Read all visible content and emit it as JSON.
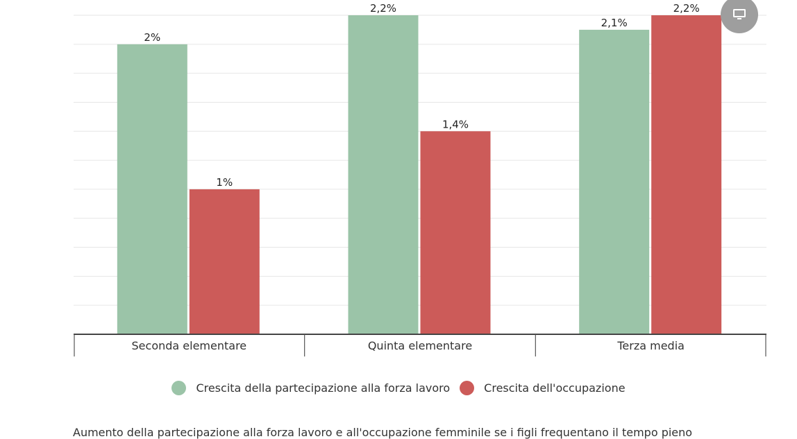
{
  "chart_data": {
    "type": "bar",
    "categories": [
      "Seconda elementare",
      "Quinta elementare",
      "Terza media"
    ],
    "series": [
      {
        "name": "Crescita della partecipazione alla forza lavoro",
        "color": "#9bc4a8",
        "values": [
          2,
          2.2,
          2.1
        ],
        "labels": [
          "2%",
          "2,2%",
          "2,1%"
        ]
      },
      {
        "name": "Crescita dell'occupazione",
        "color": "#cc5b59",
        "values": [
          1,
          1.4,
          2.2
        ],
        "labels": [
          "1%",
          "1,4%",
          "2,2%"
        ]
      }
    ],
    "ylim": [
      0,
      2.2
    ],
    "grid": true,
    "legend": "bottom-center",
    "xlabel": "",
    "ylabel": ""
  },
  "caption": "Aumento della partecipazione alla forza lavoro e all'occupazione femminile se i figli frequentano il tempo pieno",
  "icons": {
    "screen_button": "monitor-icon"
  }
}
